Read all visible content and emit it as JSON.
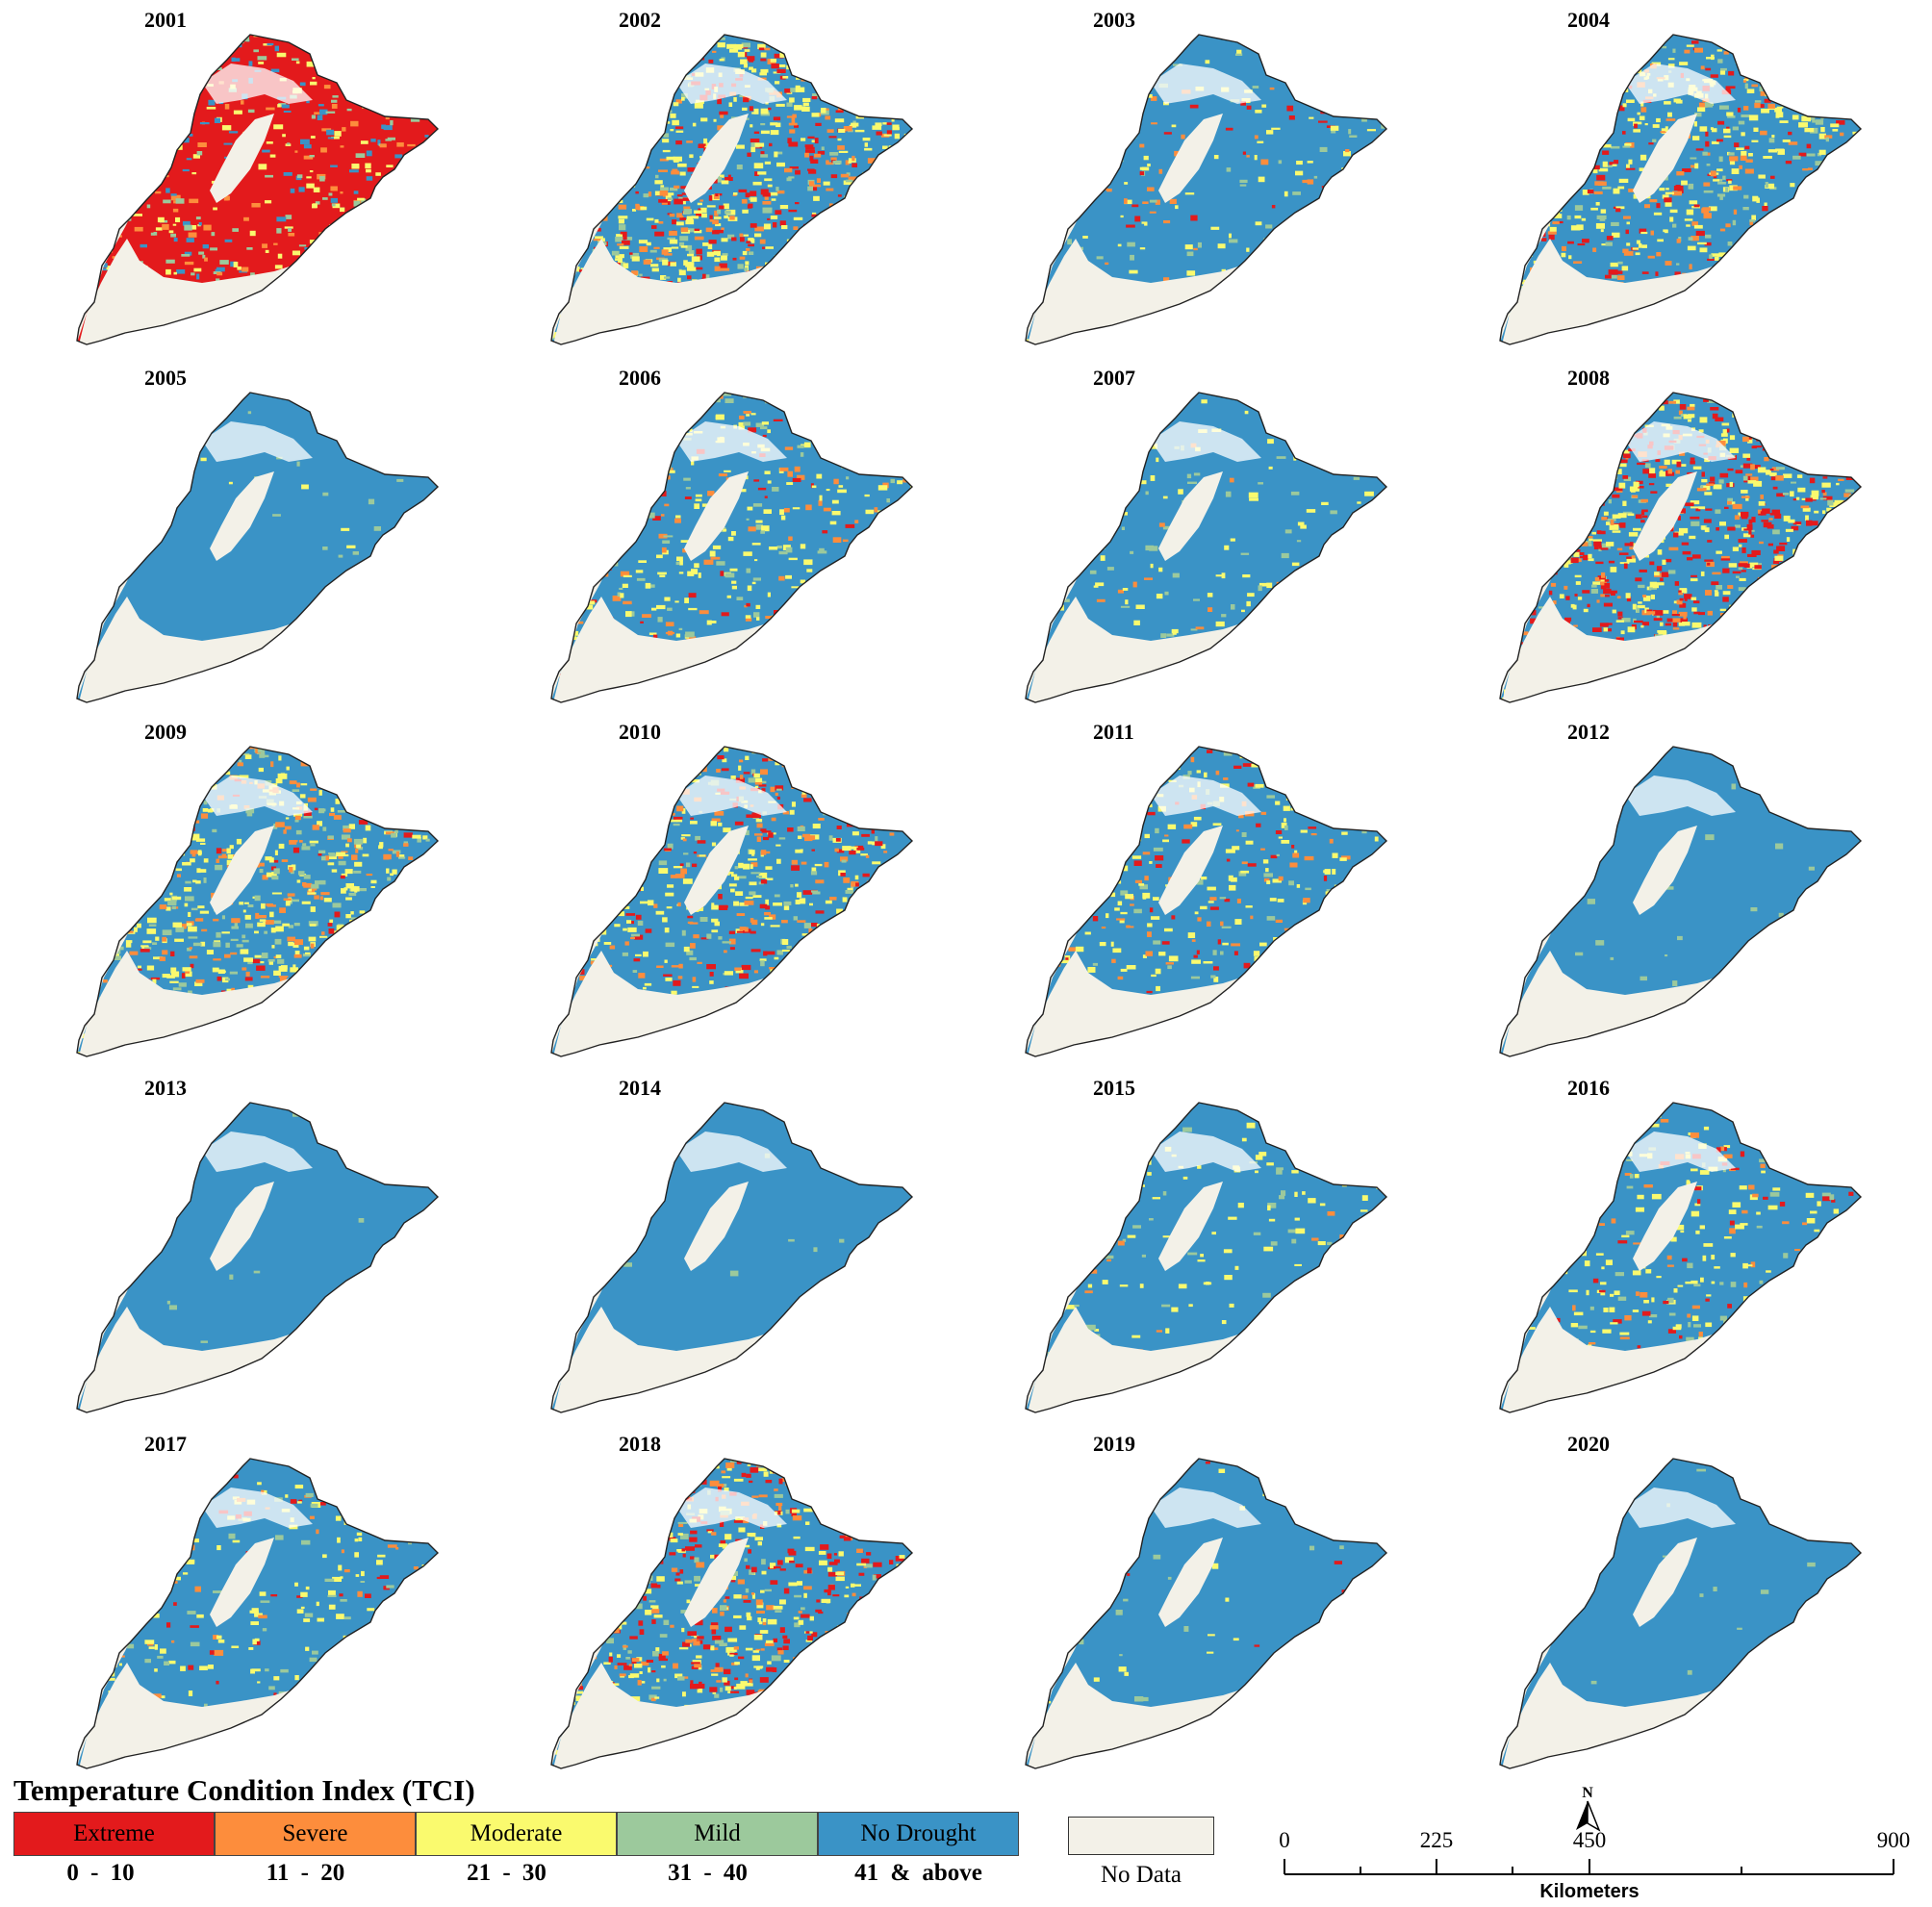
{
  "years": [
    "2001",
    "2002",
    "2003",
    "2004",
    "2005",
    "2006",
    "2007",
    "2008",
    "2009",
    "2010",
    "2011",
    "2012",
    "2013",
    "2014",
    "2015",
    "2016",
    "2017",
    "2018",
    "2019",
    "2020"
  ],
  "panels": [
    {
      "year": "2001",
      "mix": {
        "extreme": 0.7,
        "severe": 0.06,
        "moderate": 0.1,
        "mild": 0.06,
        "none": 0.08
      }
    },
    {
      "year": "2002",
      "mix": {
        "extreme": 0.18,
        "severe": 0.14,
        "moderate": 0.24,
        "mild": 0.08,
        "none": 0.36
      }
    },
    {
      "year": "2003",
      "mix": {
        "extreme": 0.02,
        "severe": 0.03,
        "moderate": 0.07,
        "mild": 0.04,
        "none": 0.84
      }
    },
    {
      "year": "2004",
      "mix": {
        "extreme": 0.08,
        "severe": 0.1,
        "moderate": 0.24,
        "mild": 0.08,
        "none": 0.5
      }
    },
    {
      "year": "2005",
      "mix": {
        "extreme": 0.0,
        "severe": 0.0,
        "moderate": 0.01,
        "mild": 0.01,
        "none": 0.98
      }
    },
    {
      "year": "2006",
      "mix": {
        "extreme": 0.03,
        "severe": 0.06,
        "moderate": 0.18,
        "mild": 0.06,
        "none": 0.67
      }
    },
    {
      "year": "2007",
      "mix": {
        "extreme": 0.0,
        "severe": 0.01,
        "moderate": 0.06,
        "mild": 0.03,
        "none": 0.9
      }
    },
    {
      "year": "2008",
      "mix": {
        "extreme": 0.26,
        "severe": 0.1,
        "moderate": 0.22,
        "mild": 0.07,
        "none": 0.35
      }
    },
    {
      "year": "2009",
      "mix": {
        "extreme": 0.04,
        "severe": 0.12,
        "moderate": 0.26,
        "mild": 0.14,
        "none": 0.44
      }
    },
    {
      "year": "2010",
      "mix": {
        "extreme": 0.12,
        "severe": 0.12,
        "moderate": 0.22,
        "mild": 0.07,
        "none": 0.47
      }
    },
    {
      "year": "2011",
      "mix": {
        "extreme": 0.04,
        "severe": 0.06,
        "moderate": 0.14,
        "mild": 0.05,
        "none": 0.71
      }
    },
    {
      "year": "2012",
      "mix": {
        "extreme": 0.0,
        "severe": 0.0,
        "moderate": 0.0,
        "mild": 0.01,
        "none": 0.99
      }
    },
    {
      "year": "2013",
      "mix": {
        "extreme": 0.0,
        "severe": 0.0,
        "moderate": 0.0,
        "mild": 0.01,
        "none": 0.99
      }
    },
    {
      "year": "2014",
      "mix": {
        "extreme": 0.0,
        "severe": 0.0,
        "moderate": 0.0,
        "mild": 0.01,
        "none": 0.99
      }
    },
    {
      "year": "2015",
      "mix": {
        "extreme": 0.0,
        "severe": 0.01,
        "moderate": 0.07,
        "mild": 0.03,
        "none": 0.89
      }
    },
    {
      "year": "2016",
      "mix": {
        "extreme": 0.04,
        "severe": 0.05,
        "moderate": 0.11,
        "mild": 0.05,
        "none": 0.75
      }
    },
    {
      "year": "2017",
      "mix": {
        "extreme": 0.02,
        "severe": 0.03,
        "moderate": 0.1,
        "mild": 0.05,
        "none": 0.8
      }
    },
    {
      "year": "2018",
      "mix": {
        "extreme": 0.16,
        "severe": 0.12,
        "moderate": 0.2,
        "mild": 0.07,
        "none": 0.45
      }
    },
    {
      "year": "2019",
      "mix": {
        "extreme": 0.01,
        "severe": 0.0,
        "moderate": 0.01,
        "mild": 0.01,
        "none": 0.97
      }
    },
    {
      "year": "2020",
      "mix": {
        "extreme": 0.0,
        "severe": 0.0,
        "moderate": 0.0,
        "mild": 0.01,
        "none": 0.99
      }
    }
  ],
  "legend": {
    "title": "Temperature Condition Index (TCI)",
    "classes": [
      {
        "key": "extreme",
        "label": "Extreme",
        "range": "0 - 10",
        "color": "#e31a1c"
      },
      {
        "key": "severe",
        "label": "Severe",
        "range": "11 - 20",
        "color": "#fd8d3c"
      },
      {
        "key": "moderate",
        "label": "Moderate",
        "range": "21 - 30",
        "color": "#fafa6e"
      },
      {
        "key": "mild",
        "label": "Mild",
        "range": "31 - 40",
        "color": "#9cc99c"
      },
      {
        "key": "none",
        "label": "No Drought",
        "range": "41 & above",
        "color": "#3a93c6"
      }
    ],
    "nodata": {
      "label": "No Data",
      "color": "#f3f1e8"
    }
  },
  "scale": {
    "ticks": [
      "0",
      "225",
      "450",
      "900"
    ],
    "unit": "Kilometers",
    "north": "N"
  }
}
